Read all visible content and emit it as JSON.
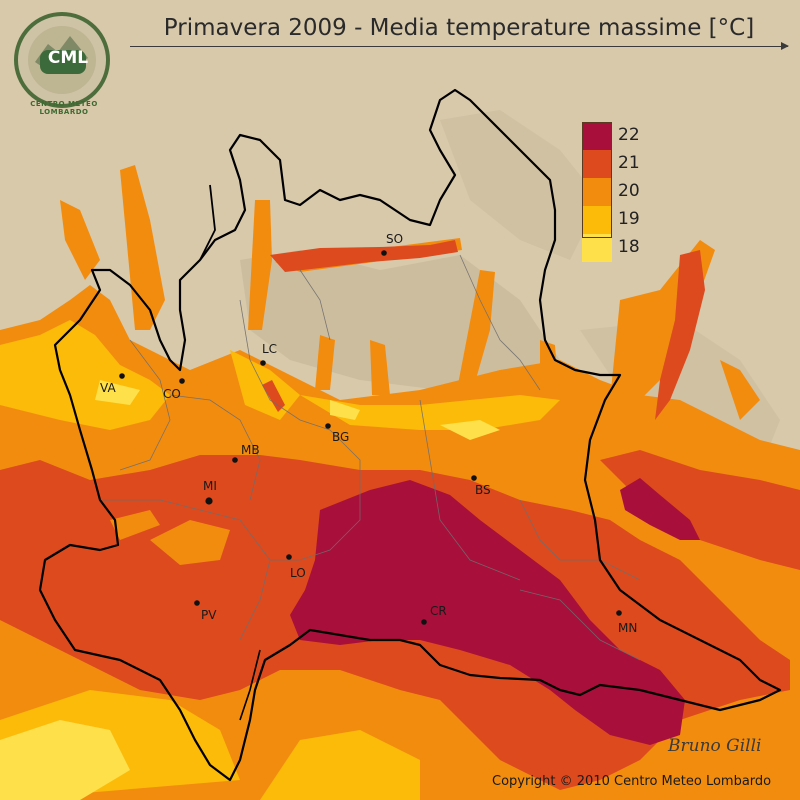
{
  "title": "Primavera 2009 - Media temperature massime [°C]",
  "logo": {
    "text": "CML",
    "ring_text": "CENTRO METEO LOMBARDO"
  },
  "legend": [
    {
      "label": "22",
      "color": "#a80f3a"
    },
    {
      "label": "21",
      "color": "#dc4a1e"
    },
    {
      "label": "20",
      "color": "#f28c0f"
    },
    {
      "label": "19",
      "color": "#fcbb08"
    },
    {
      "label": "18",
      "color": "#fde04a"
    }
  ],
  "cities": [
    {
      "name": "SO"
    },
    {
      "name": "LC"
    },
    {
      "name": "VA"
    },
    {
      "name": "CO"
    },
    {
      "name": "BG"
    },
    {
      "name": "MB"
    },
    {
      "name": "MI"
    },
    {
      "name": "BS"
    },
    {
      "name": "LO"
    },
    {
      "name": "PV"
    },
    {
      "name": "CR"
    },
    {
      "name": "MN"
    }
  ],
  "signature": "Bruno Gilli",
  "copyright": "Copyright © 2010 Centro Meteo Lombardo",
  "colors": {
    "background": "#d8c9ab",
    "relief_dark": "#b9a78a",
    "border": "#000000"
  }
}
